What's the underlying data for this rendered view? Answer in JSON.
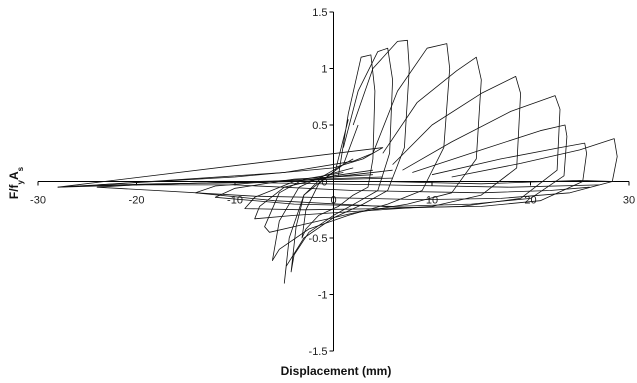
{
  "chart_data": {
    "type": "line",
    "title": "",
    "xlabel": "Displacement (mm)",
    "ylabel": "F/f",
    "ylabel_sub": "y",
    "ylabel_tail": "A",
    "ylabel_sub2": "s",
    "xlim": [
      -30,
      30
    ],
    "ylim": [
      -1.5,
      1.5
    ],
    "x_ticks": [
      -30,
      -20,
      -10,
      0,
      10,
      20,
      30
    ],
    "x_tick_labels": [
      "-30",
      "-20",
      "-10",
      "0",
      "10",
      "20",
      "30"
    ],
    "y_ticks": [
      1.5,
      1,
      0.5,
      0,
      -0.5,
      -1,
      -1.5
    ],
    "y_tick_labels": [
      "1.5",
      "1",
      "0.5",
      "0",
      "-0.5",
      "-1",
      "-1.5"
    ],
    "grid": false,
    "legend": "none",
    "series": [
      {
        "values": [
          [
            0.5,
            0.05
          ],
          [
            1.5,
            0.6
          ],
          [
            2.8,
            1.1
          ],
          [
            3.8,
            1.12
          ],
          [
            4.2,
            0.8
          ],
          [
            4,
            0.2
          ],
          [
            3.5,
            -0.05
          ],
          [
            2,
            -0.12
          ],
          [
            0.5,
            -0.22
          ],
          [
            -1.5,
            -0.3
          ],
          [
            -2.8,
            -0.42
          ],
          [
            -3.2,
            -0.5
          ],
          [
            -2.8,
            -0.25
          ],
          [
            -1.5,
            -0.02
          ],
          [
            0.2,
            0.1
          ],
          [
            1.5,
            0.55
          ]
        ]
      },
      {
        "values": [
          [
            1,
            0.3
          ],
          [
            2.5,
            0.8
          ],
          [
            4.5,
            1.15
          ],
          [
            5.5,
            1.18
          ],
          [
            6,
            0.9
          ],
          [
            5.7,
            0.25
          ],
          [
            4.5,
            -0.08
          ],
          [
            2.5,
            -0.18
          ],
          [
            0,
            -0.3
          ],
          [
            -2.5,
            -0.45
          ],
          [
            -4,
            -0.65
          ],
          [
            -4.3,
            -0.8
          ],
          [
            -3.8,
            -0.4
          ],
          [
            -3,
            -0.12
          ],
          [
            -1,
            0.02
          ],
          [
            1,
            0.15
          ],
          [
            2.5,
            0.5
          ]
        ]
      },
      {
        "values": [
          [
            2,
            0.5
          ],
          [
            4,
            1.0
          ],
          [
            6.5,
            1.24
          ],
          [
            7.5,
            1.25
          ],
          [
            7.7,
            1.0
          ],
          [
            7.2,
            0.3
          ],
          [
            5.5,
            -0.08
          ],
          [
            3,
            -0.2
          ],
          [
            0,
            -0.32
          ],
          [
            -3,
            -0.5
          ],
          [
            -4.8,
            -0.75
          ],
          [
            -5,
            -0.9
          ],
          [
            -4.5,
            -0.5
          ],
          [
            -3,
            -0.12
          ],
          [
            -1,
            0.05
          ],
          [
            2,
            0.2
          ]
        ]
      },
      {
        "values": [
          [
            4,
            0.25
          ],
          [
            6.5,
            0.8
          ],
          [
            9.5,
            1.18
          ],
          [
            11.5,
            1.22
          ],
          [
            11.8,
            1.0
          ],
          [
            11.2,
            0.3
          ],
          [
            9,
            -0.08
          ],
          [
            5.5,
            -0.2
          ],
          [
            1.5,
            -0.3
          ],
          [
            -2.5,
            -0.42
          ],
          [
            -5.5,
            -0.6
          ],
          [
            -6.2,
            -0.7
          ],
          [
            -5.5,
            -0.35
          ],
          [
            -3.5,
            -0.05
          ],
          [
            -1,
            0.05
          ],
          [
            2,
            0.12
          ]
        ]
      },
      {
        "values": [
          [
            5,
            0.25
          ],
          [
            8.5,
            0.7
          ],
          [
            12.5,
            0.98
          ],
          [
            14.5,
            1.1
          ],
          [
            15,
            0.9
          ],
          [
            14.5,
            0.2
          ],
          [
            12,
            -0.1
          ],
          [
            7.5,
            -0.2
          ],
          [
            2,
            -0.28
          ],
          [
            -3,
            -0.38
          ],
          [
            -6.5,
            -0.45
          ],
          [
            -7,
            -0.4
          ],
          [
            -5.5,
            -0.1
          ],
          [
            -3,
            0.02
          ],
          [
            1,
            0.08
          ]
        ]
      },
      {
        "values": [
          [
            6,
            0.15
          ],
          [
            10,
            0.5
          ],
          [
            15,
            0.78
          ],
          [
            18.5,
            0.93
          ],
          [
            19,
            0.78
          ],
          [
            18.6,
            0.12
          ],
          [
            15,
            -0.12
          ],
          [
            10,
            -0.22
          ],
          [
            3,
            -0.26
          ],
          [
            -4,
            -0.3
          ],
          [
            -8,
            -0.33
          ],
          [
            -7.5,
            -0.22
          ],
          [
            -5,
            -0.05
          ],
          [
            0,
            0.05
          ],
          [
            4,
            0.1
          ]
        ]
      },
      {
        "values": [
          [
            7,
            0.1
          ],
          [
            12,
            0.35
          ],
          [
            18,
            0.62
          ],
          [
            22.5,
            0.76
          ],
          [
            23,
            0.64
          ],
          [
            22.7,
            0.1
          ],
          [
            19,
            -0.15
          ],
          [
            13,
            -0.22
          ],
          [
            5,
            -0.24
          ],
          [
            -3,
            -0.25
          ],
          [
            -9,
            -0.24
          ],
          [
            -8,
            -0.14
          ],
          [
            -4,
            0.0
          ],
          [
            2,
            0.06
          ],
          [
            6,
            0.1
          ]
        ]
      },
      {
        "values": [
          [
            8,
            0.08
          ],
          [
            15,
            0.28
          ],
          [
            21,
            0.45
          ],
          [
            23.5,
            0.5
          ],
          [
            23.7,
            0.4
          ],
          [
            23.4,
            0.05
          ],
          [
            20,
            -0.15
          ],
          [
            14,
            -0.2
          ],
          [
            6,
            -0.22
          ],
          [
            -4,
            -0.2
          ],
          [
            -12,
            -0.14
          ],
          [
            -10,
            -0.06
          ],
          [
            -4,
            0.02
          ],
          [
            4,
            0.06
          ]
        ]
      },
      {
        "values": [
          [
            10,
            0.06
          ],
          [
            17,
            0.2
          ],
          [
            23,
            0.3
          ],
          [
            25.5,
            0.34
          ],
          [
            25.7,
            0.25
          ],
          [
            25.3,
            0.0
          ],
          [
            21,
            -0.17
          ],
          [
            15,
            -0.22
          ],
          [
            7,
            -0.23
          ],
          [
            -6,
            -0.17
          ],
          [
            -14,
            -0.1
          ],
          [
            -12,
            -0.04
          ],
          [
            -5,
            0.01
          ],
          [
            5,
            0.04
          ]
        ]
      },
      {
        "values": [
          [
            12,
            0.04
          ],
          [
            19,
            0.16
          ],
          [
            25,
            0.28
          ],
          [
            28.5,
            0.38
          ],
          [
            28.8,
            0.22
          ],
          [
            28.3,
            0.0
          ],
          [
            24,
            -0.1
          ],
          [
            17,
            -0.15
          ],
          [
            9,
            -0.16
          ],
          [
            -8,
            -0.13
          ],
          [
            -18,
            -0.08
          ],
          [
            -24,
            -0.05
          ],
          [
            -20,
            -0.03
          ],
          [
            -8,
            0.0
          ],
          [
            6,
            0.03
          ]
        ]
      },
      {
        "values": [
          [
            -28,
            -0.05
          ],
          [
            -20,
            -0.01
          ],
          [
            -10,
            0.04
          ],
          [
            0,
            0.12
          ],
          [
            3,
            0.2
          ],
          [
            5,
            0.3
          ],
          [
            -28,
            -0.05
          ]
        ]
      },
      {
        "values": [
          [
            -24,
            -0.03
          ],
          [
            -15,
            0.02
          ],
          [
            -5,
            0.08
          ],
          [
            2,
            0.18
          ],
          [
            4,
            0.25
          ]
        ]
      },
      {
        "values": [
          [
            -28,
            -0.05
          ],
          [
            -20,
            -0.03
          ],
          [
            -12,
            -0.01
          ],
          [
            -5,
            0.0
          ],
          [
            5,
            0.0
          ],
          [
            15,
            -0.02
          ],
          [
            25,
            0.01
          ],
          [
            28.5,
            0.0
          ]
        ]
      },
      {
        "values": [
          [
            -26,
            -0.04
          ],
          [
            -18,
            -0.02
          ],
          [
            -8,
            -0.01
          ],
          [
            5,
            -0.03
          ],
          [
            18,
            -0.05
          ],
          [
            27,
            -0.03
          ]
        ]
      },
      {
        "values": [
          [
            -22,
            -0.03
          ],
          [
            -10,
            -0.03
          ],
          [
            2,
            -0.08
          ],
          [
            15,
            -0.1
          ],
          [
            22,
            -0.08
          ],
          [
            26,
            -0.05
          ]
        ]
      }
    ]
  }
}
